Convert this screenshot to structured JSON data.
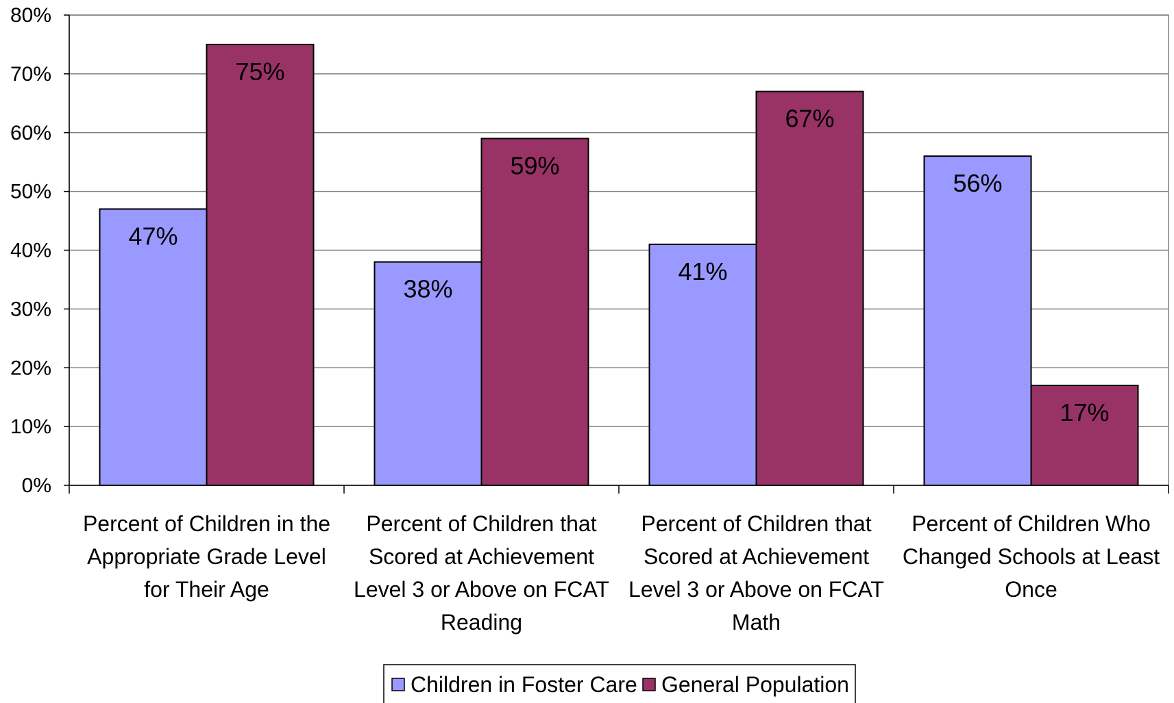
{
  "chart_data": {
    "type": "bar",
    "title": "",
    "xlabel": "",
    "ylabel": "",
    "ylim": [
      0,
      80
    ],
    "y_tick_step": 10,
    "y_tick_format": "percent",
    "grid": true,
    "legend_position": "bottom",
    "categories": [
      [
        "Percent of Children in the",
        "Appropriate Grade Level",
        "for Their Age"
      ],
      [
        "Percent of Children that",
        "Scored at Achievement",
        "Level 3 or Above on FCAT",
        "Reading"
      ],
      [
        "Percent of Children that",
        "Scored at Achievement",
        "Level 3 or Above on FCAT",
        "Math"
      ],
      [
        "Percent of Children Who",
        "Changed Schools at Least",
        "Once"
      ]
    ],
    "series": [
      {
        "name": "Children in Foster Care",
        "color": "#9999ff",
        "values": [
          47,
          38,
          41,
          56
        ]
      },
      {
        "name": "General Population",
        "color": "#993366",
        "values": [
          75,
          59,
          67,
          17
        ]
      }
    ]
  }
}
